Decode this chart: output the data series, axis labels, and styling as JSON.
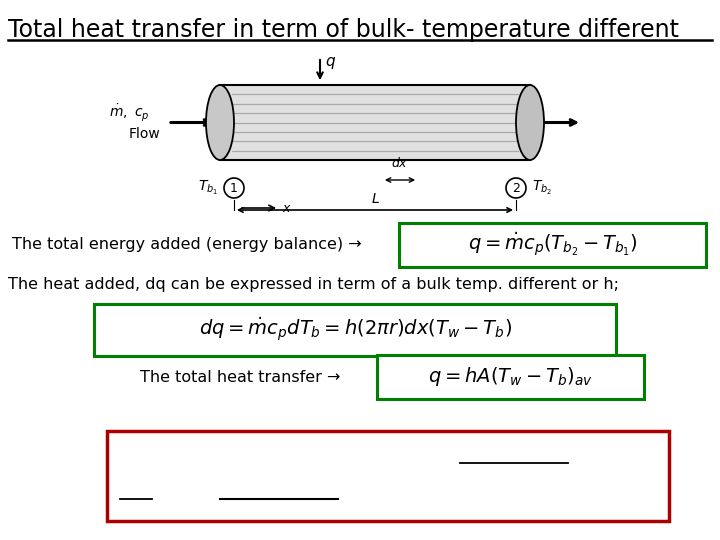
{
  "title": "Total heat transfer in term of bulk- temperature different",
  "bg_color": "#ffffff",
  "title_color": "#000000",
  "title_fontsize": 17,
  "text1": "The total energy added (energy balance) →",
  "eq1": "$q = \\dot{m}c_p(T_{b_2} - T_{b_1})$",
  "eq1_box_color": "#008000",
  "text2": "The heat added, dq can be expressed in term of a bulk temp. different or h;",
  "eq2": "$dq = \\dot{m}c_p dT_b = h(2\\pi r)dx(T_w - T_b)$",
  "eq2_box_color": "#008000",
  "text3": "The total heat transfer →",
  "eq3": "$q = hA(T_w - T_b)_{av}$",
  "eq3_box_color": "#008000",
  "note_box_color": "#aa0000",
  "tube_fill": "#e0e0e0",
  "tube_stripe": "#aaaaaa"
}
